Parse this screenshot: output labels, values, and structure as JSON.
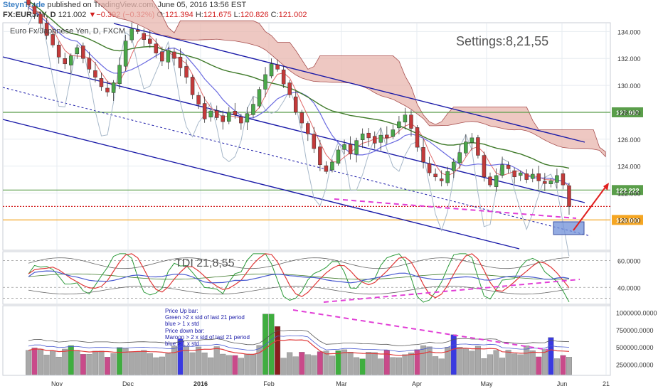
{
  "header": {
    "author": "SteynTrade",
    "published_text": " published on TradingView.com, June 05, 2016 13:56 EST",
    "symbol": "FX:EURJPY, D",
    "last": "121.002",
    "change_arrow": "▼",
    "change": "−0.392 (−0.32%)",
    "o_label": "O:",
    "o_value": "121.394",
    "h_label": "H:",
    "h_value": "121.675",
    "l_label": "L:",
    "l_value": "120.826",
    "c_label": "C:",
    "c_value": "121.002"
  },
  "chart_data": [
    {
      "type": "candlestick",
      "title": "Euro Fx/Japanese Yen, D, FXCM",
      "annotation": "Settings:8,21,55",
      "x_tick_labels": [
        "Nov",
        "Dec",
        "2016",
        "Feb",
        "Mar",
        "Apr",
        "May",
        "Jun",
        "21"
      ],
      "y_ticks": [
        120.0,
        122.0,
        124.0,
        126.0,
        128.0,
        130.0,
        132.0,
        134.0
      ],
      "y_tick_labels": [
        "120.000",
        "122.000",
        "124.000",
        "126.000",
        "128.000",
        "130.000",
        "132.000",
        "134.000"
      ],
      "ylim": [
        117.8,
        134.6
      ],
      "price_flags": [
        {
          "label": "127.997",
          "value": 127.997,
          "color": "#5a9e4a"
        },
        {
          "label": "122.222",
          "value": 122.222,
          "color": "#5a9e4a"
        },
        {
          "label": "120.000",
          "value": 120.0,
          "color": "#f5a623"
        }
      ],
      "horizontal_levels": [
        {
          "value": 127.997,
          "color": "#5a9e4a"
        },
        {
          "value": 122.222,
          "color": "#5a9e4a"
        },
        {
          "value": 120.0,
          "color": "#f5a623"
        },
        {
          "value": 121.002,
          "color": "#d21f1f",
          "style": "dotted"
        }
      ],
      "close_series": [
        136.0,
        135.3,
        134.6,
        133.7,
        133.0,
        132.1,
        131.6,
        132.2,
        132.8,
        132.0,
        131.2,
        130.6,
        129.9,
        129.5,
        130.2,
        131.5,
        133.3,
        134.2,
        134.0,
        133.4,
        133.1,
        132.4,
        131.8,
        132.6,
        132.0,
        131.3,
        130.6,
        129.3,
        128.6,
        127.5,
        128.1,
        127.6,
        127.3,
        128.0,
        127.8,
        127.2,
        127.9,
        128.6,
        129.7,
        130.8,
        131.6,
        131.2,
        130.1,
        129.3,
        128.0,
        127.2,
        126.4,
        125.3,
        124.1,
        123.6,
        124.3,
        125.2,
        125.6,
        124.9,
        125.9,
        126.4,
        126.1,
        125.7,
        126.3,
        126.1,
        126.7,
        127.3,
        127.8,
        126.8,
        125.4,
        124.3,
        123.5,
        123.2,
        122.9,
        123.6,
        124.3,
        125.0,
        125.8,
        126.1,
        124.8,
        123.2,
        122.6,
        123.3,
        124.1,
        123.8,
        123.2,
        123.5,
        123.0,
        123.4,
        122.9,
        122.7,
        122.9,
        123.3,
        122.6,
        121.0
      ],
      "volume_y_ticks": [
        250000,
        500000,
        750000,
        1000000
      ],
      "volume_y_tick_labels": [
        "250000.0000",
        "500000.0000",
        "750000.0000",
        "1000000.0000"
      ],
      "volume_ylim": [
        100000,
        1090000
      ],
      "volume_notes": [
        "Price Up bar:",
        "Green >2 x std of last 21 period",
        "blue > 1 x std",
        "Price down bar:",
        "Maroon > 2 x std of last 21 period",
        "blue > 1 x std"
      ]
    },
    {
      "type": "line",
      "title": "TDI 21,8,55",
      "y_ticks": [
        40.0,
        60.0
      ],
      "y_tick_labels": [
        "40.0000",
        "60.0000"
      ],
      "ylim": [
        28,
        66
      ]
    }
  ],
  "colors": {
    "axis_text": "#333333",
    "grid": "#e6ebf0",
    "up_candle": "#4aa84a",
    "down_candle": "#c43a3a",
    "channel": "#1a1aa8",
    "cloud": "#e8b5ad",
    "trendline": "#e13fd6",
    "arrow": "#e02020",
    "highlight_box": "#6f8fd8"
  }
}
